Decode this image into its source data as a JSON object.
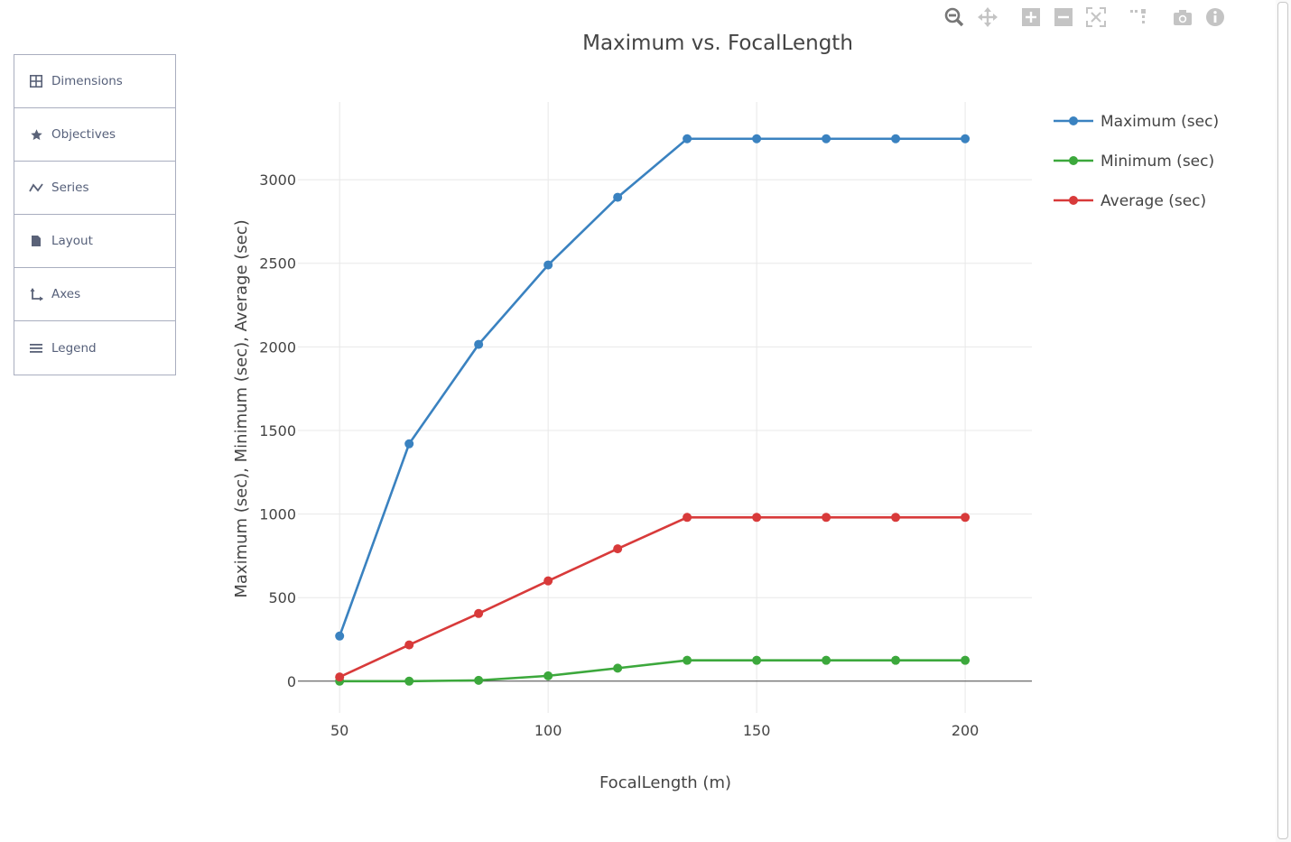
{
  "side_panel": {
    "items": [
      {
        "label": "Dimensions",
        "icon": "grid-icon"
      },
      {
        "label": "Objectives",
        "icon": "star-icon"
      },
      {
        "label": "Series",
        "icon": "series-wave-icon"
      },
      {
        "label": "Layout",
        "icon": "document-icon"
      },
      {
        "label": "Axes",
        "icon": "axes-icon"
      },
      {
        "label": "Legend",
        "icon": "list-icon"
      }
    ]
  },
  "modebar": {
    "buttons": [
      "zoom-icon",
      "pan-icon",
      "zoom-in-icon",
      "zoom-out-icon",
      "autoscale-icon",
      "reset-axes-icon",
      "camera-icon",
      "info-icon"
    ]
  },
  "chart_data": {
    "type": "line",
    "title": "Maximum vs. FocalLength",
    "xlabel": "FocalLength (m)",
    "ylabel": "Maximum (sec), Minimum (sec), Average (sec)",
    "x": [
      50,
      66.67,
      83.33,
      100,
      116.67,
      133.33,
      150,
      166.67,
      183.33,
      200
    ],
    "xlim": [
      40,
      216
    ],
    "ylim": [
      -190,
      3465
    ],
    "xticks": [
      50,
      100,
      150,
      200
    ],
    "yticks": [
      0,
      500,
      1000,
      1500,
      2000,
      2500,
      3000
    ],
    "grid": true,
    "legend_position": "top-right",
    "series": [
      {
        "name": "Maximum (sec)",
        "color": "#3a82c0",
        "values": [
          270,
          1420,
          2015,
          2490,
          2895,
          3245,
          3245,
          3245,
          3245,
          3245
        ]
      },
      {
        "name": "Minimum (sec)",
        "color": "#3ca83c",
        "values": [
          0,
          0,
          5,
          32,
          78,
          125,
          125,
          125,
          125,
          125
        ]
      },
      {
        "name": "Average (sec)",
        "color": "#d83a3a",
        "values": [
          25,
          217,
          405,
          600,
          792,
          980,
          980,
          980,
          980,
          980
        ]
      }
    ]
  }
}
